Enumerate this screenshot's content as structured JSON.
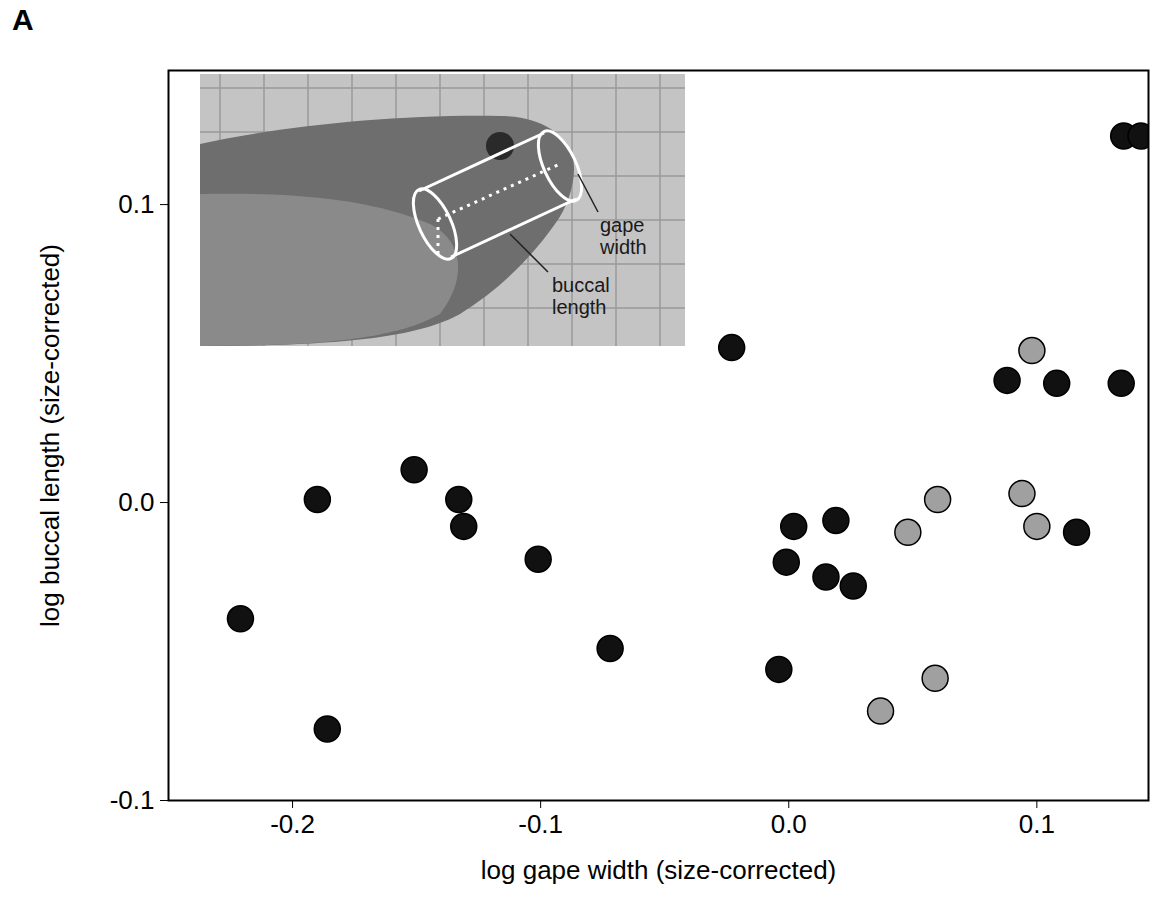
{
  "chart_data": {
    "type": "scatter",
    "panel_label": "A",
    "xlabel": "log gape width (size-corrected)",
    "ylabel": "log buccal length (size-corrected)",
    "annotations": [
      "gape width",
      "buccal length"
    ],
    "xlim": [
      -0.25,
      0.145
    ],
    "ylim": [
      -0.1,
      0.145
    ],
    "xticks": [
      -0.2,
      -0.1,
      {
        "value": 0,
        "label": "0.0"
      },
      0.1
    ],
    "yticks": [
      -0.1,
      {
        "value": 0,
        "label": "0.0"
      },
      0.1
    ],
    "grid": false,
    "series": [
      {
        "color": "#111111",
        "marker": "circle",
        "x": [
          -0.221,
          -0.186,
          -0.19,
          -0.151,
          -0.133,
          -0.131,
          -0.101,
          -0.072,
          -0.023,
          0.002,
          -0.001,
          -0.004,
          0.019,
          0.015,
          0.026,
          0.088,
          0.108,
          0.134,
          0.116,
          0.135,
          0.142
        ],
        "y": [
          -0.039,
          -0.076,
          0.001,
          0.011,
          0.001,
          -0.008,
          -0.019,
          -0.049,
          0.052,
          -0.008,
          -0.02,
          -0.056,
          -0.006,
          -0.025,
          -0.028,
          0.041,
          0.04,
          0.04,
          -0.01,
          0.123,
          0.123
        ]
      },
      {
        "color": "#a0a0a0",
        "marker": "circle",
        "x": [
          0.098,
          0.06,
          0.048,
          0.094,
          0.1,
          0.059,
          0.037
        ],
        "y": [
          0.051,
          0.001,
          -0.01,
          0.003,
          -0.008,
          -0.059,
          -0.07
        ]
      }
    ]
  }
}
